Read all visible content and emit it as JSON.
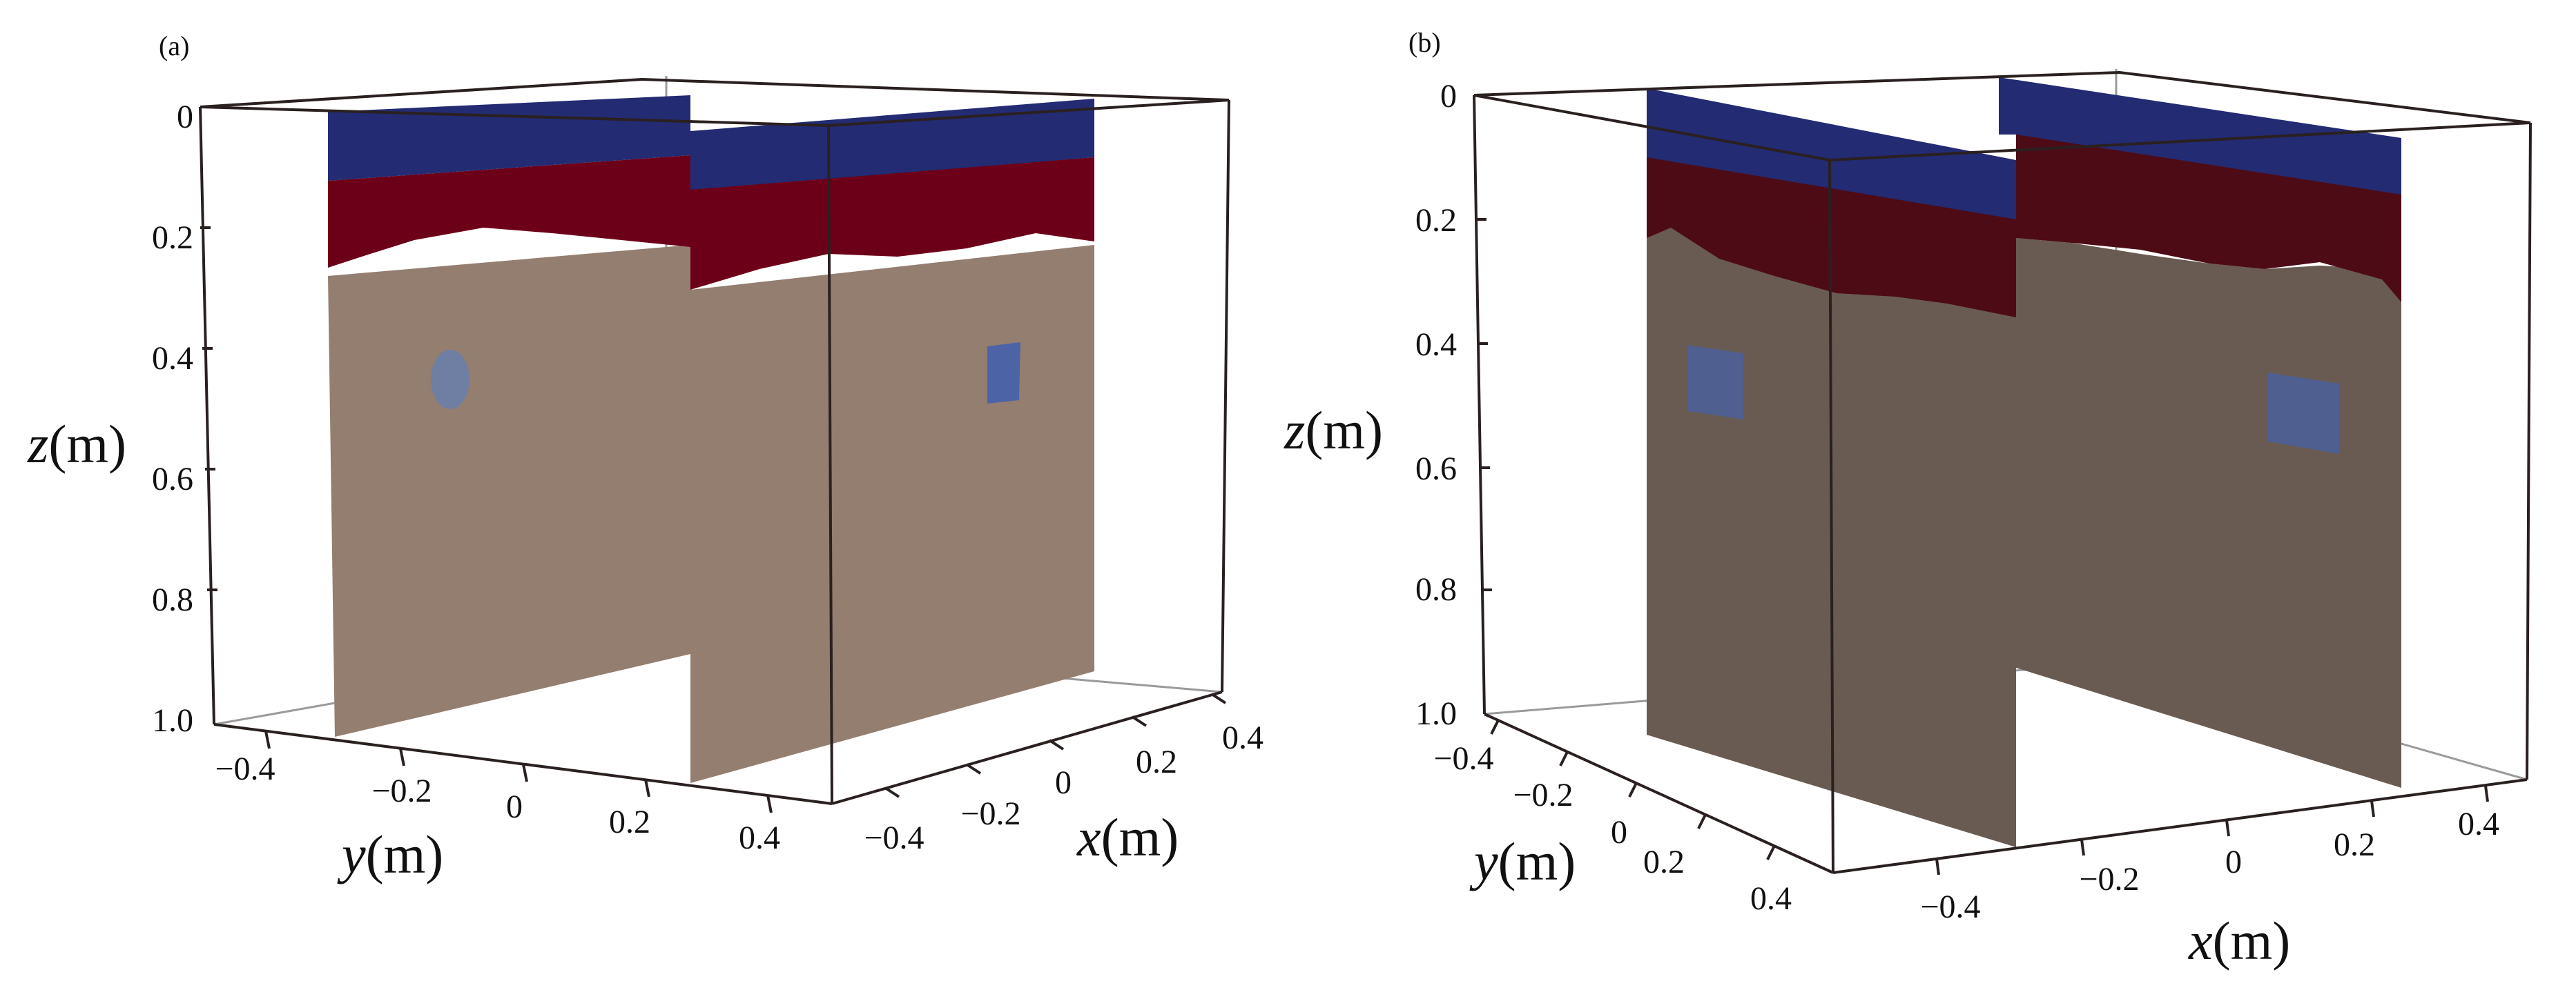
{
  "colors": {
    "water_layer": "#232b73",
    "wet_layer": "#6d0019",
    "soil_a": "#947e70",
    "soil_b": "#695b51",
    "anomaly_a_left": "#6f7fa3",
    "anomaly_a_right": "#4c64a6",
    "anomaly_b": "#4f5f8f",
    "frame": "#2a2020"
  },
  "panels": [
    {
      "label": "(a)",
      "z_ticks": [
        "0",
        "0.2",
        "0.4",
        "0.6",
        "0.8",
        "1.0"
      ],
      "y_ticks": [
        "−0.4",
        "−0.2",
        "0",
        "0.2",
        "0.4"
      ],
      "x_ticks": [
        "−0.4",
        "−0.2",
        "0",
        "0.2",
        "0.4"
      ],
      "z_label": {
        "var": "z",
        "unit": "(m)"
      },
      "y_label": {
        "var": "y",
        "unit": "(m)"
      },
      "x_label": {
        "var": "x",
        "unit": "(m)"
      }
    },
    {
      "label": "(b)",
      "z_ticks": [
        "0",
        "0.2",
        "0.4",
        "0.6",
        "0.8",
        "1.0"
      ],
      "y_ticks": [
        "−0.4",
        "−0.2",
        "0",
        "0.2",
        "0.4"
      ],
      "x_ticks": [
        "−0.4",
        "−0.2",
        "0",
        "0.2",
        "0.4"
      ],
      "z_label": {
        "var": "z",
        "unit": "(m)"
      },
      "y_label": {
        "var": "y",
        "unit": "(m)"
      },
      "x_label": {
        "var": "x",
        "unit": "(m)"
      }
    }
  ]
}
